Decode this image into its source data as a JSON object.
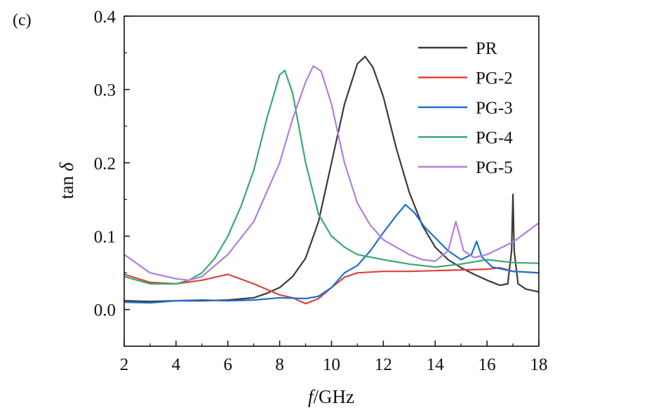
{
  "panel_label": "(c)",
  "colors": {
    "PR": "#3a3a3a",
    "PG-2": "#e0403a",
    "PG-3": "#1f6fd0",
    "PG-4": "#3aa872",
    "PG-5": "#b07ee0",
    "axis": "#111111"
  },
  "chart_data": {
    "type": "line",
    "xlabel_italic": "f",
    "xlabel_rest": "/GHz",
    "ylabel_prefix": "tan ",
    "ylabel_symbol": "δ",
    "xlim": [
      2,
      18
    ],
    "ylim": [
      -0.05,
      0.4
    ],
    "xticks": [
      2,
      4,
      6,
      8,
      10,
      12,
      14,
      16,
      18
    ],
    "yticks": [
      0.0,
      0.1,
      0.2,
      0.3,
      0.4
    ],
    "ytick_labels": [
      "0.0",
      "0.1",
      "0.2",
      "0.3",
      "0.4"
    ],
    "legend_position": "top-right",
    "grid": false,
    "series": [
      {
        "name": "PR",
        "x": [
          2,
          3,
          4,
          5,
          6,
          7,
          7.5,
          8,
          8.5,
          9,
          9.5,
          10,
          10.5,
          11,
          11.3,
          11.6,
          12,
          12.5,
          13,
          13.5,
          14,
          14.5,
          15,
          15.5,
          16,
          16.5,
          16.8,
          16.95,
          17.0,
          17.05,
          17.2,
          17.5,
          18
        ],
        "y": [
          0.012,
          0.011,
          0.012,
          0.012,
          0.013,
          0.016,
          0.022,
          0.03,
          0.045,
          0.07,
          0.12,
          0.2,
          0.28,
          0.335,
          0.345,
          0.33,
          0.29,
          0.22,
          0.16,
          0.115,
          0.085,
          0.068,
          0.057,
          0.048,
          0.04,
          0.033,
          0.035,
          0.08,
          0.157,
          0.08,
          0.035,
          0.028,
          0.024
        ]
      },
      {
        "name": "PG-2",
        "x": [
          2,
          3,
          4,
          5,
          6,
          7,
          8,
          8.5,
          9,
          9.5,
          10,
          10.5,
          11,
          12,
          13,
          14,
          15,
          16,
          16.5,
          17,
          18
        ],
        "y": [
          0.048,
          0.037,
          0.035,
          0.04,
          0.048,
          0.035,
          0.02,
          0.016,
          0.008,
          0.015,
          0.03,
          0.044,
          0.05,
          0.052,
          0.052,
          0.053,
          0.054,
          0.055,
          0.057,
          0.052,
          0.05
        ]
      },
      {
        "name": "PG-3",
        "x": [
          2,
          3,
          4,
          5,
          6,
          7,
          8,
          9,
          9.5,
          10,
          10.5,
          11,
          11.5,
          12,
          12.5,
          12.85,
          13.2,
          13.6,
          14,
          14.5,
          15,
          15.4,
          15.6,
          15.8,
          16.2,
          17,
          18
        ],
        "y": [
          0.01,
          0.009,
          0.012,
          0.013,
          0.012,
          0.013,
          0.016,
          0.015,
          0.018,
          0.03,
          0.05,
          0.06,
          0.08,
          0.105,
          0.128,
          0.143,
          0.132,
          0.112,
          0.098,
          0.08,
          0.068,
          0.075,
          0.093,
          0.072,
          0.058,
          0.052,
          0.05
        ]
      },
      {
        "name": "PG-4",
        "x": [
          2,
          3,
          4,
          4.5,
          5,
          5.5,
          6,
          6.5,
          7,
          7.5,
          8,
          8.2,
          8.5,
          9,
          9.5,
          10,
          10.5,
          11,
          12,
          13,
          14,
          15,
          16,
          17,
          18
        ],
        "y": [
          0.045,
          0.035,
          0.035,
          0.04,
          0.05,
          0.07,
          0.1,
          0.14,
          0.19,
          0.26,
          0.32,
          0.326,
          0.295,
          0.2,
          0.13,
          0.1,
          0.085,
          0.075,
          0.068,
          0.062,
          0.058,
          0.062,
          0.068,
          0.064,
          0.063
        ]
      },
      {
        "name": "PG-5",
        "x": [
          2,
          3,
          4,
          4.5,
          5,
          6,
          7,
          8,
          8.5,
          9,
          9.3,
          9.6,
          10,
          10.5,
          11,
          11.5,
          12,
          12.5,
          13,
          13.5,
          14,
          14.5,
          14.8,
          15.1,
          15.5,
          16,
          17,
          18
        ],
        "y": [
          0.075,
          0.05,
          0.042,
          0.04,
          0.045,
          0.075,
          0.12,
          0.2,
          0.26,
          0.31,
          0.332,
          0.325,
          0.28,
          0.2,
          0.145,
          0.115,
          0.095,
          0.085,
          0.075,
          0.068,
          0.066,
          0.08,
          0.12,
          0.08,
          0.071,
          0.075,
          0.092,
          0.118
        ]
      }
    ]
  }
}
